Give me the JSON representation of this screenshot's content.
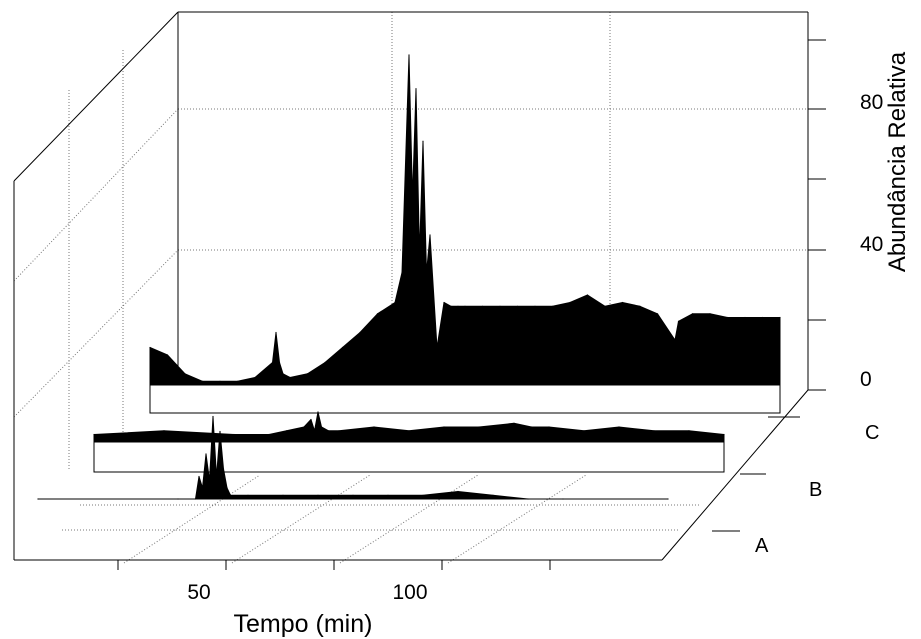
{
  "chart_data": {
    "type": "line",
    "title": "",
    "xlabel": "Tempo (min)",
    "ylabel": "Abundância Relativa",
    "x_ticks": [
      50,
      100
    ],
    "y_ticks": [
      0,
      40,
      80
    ],
    "xlim": [
      0,
      180
    ],
    "ylim": [
      0,
      100
    ],
    "grid": true,
    "series": [
      {
        "name": "C",
        "x": [
          0,
          5,
          10,
          15,
          20,
          25,
          30,
          35,
          36,
          37,
          38,
          40,
          45,
          50,
          55,
          60,
          65,
          70,
          72,
          74,
          75,
          76,
          77,
          78,
          79,
          80,
          82,
          84,
          86,
          88,
          90,
          95,
          100,
          105,
          110,
          115,
          120,
          125,
          130,
          135,
          140,
          145,
          150,
          151,
          155,
          160,
          165,
          170,
          175,
          180
        ],
        "y": [
          10,
          8,
          3,
          1,
          1,
          1,
          2,
          6,
          14,
          6,
          3,
          2,
          3,
          6,
          10,
          14,
          19,
          22,
          30,
          88,
          50,
          79,
          35,
          65,
          30,
          40,
          10,
          22,
          21,
          21,
          21,
          21,
          21,
          21,
          21,
          21,
          22,
          24,
          21,
          22,
          21,
          19,
          12,
          17,
          19,
          19,
          18,
          18,
          18,
          18
        ]
      },
      {
        "name": "B",
        "x": [
          0,
          20,
          40,
          50,
          55,
          60,
          62,
          63,
          64,
          65,
          67,
          70,
          80,
          90,
          100,
          110,
          120,
          125,
          130,
          140,
          150,
          160,
          170,
          180
        ],
        "y": [
          2,
          3,
          2,
          2,
          3,
          4,
          6,
          3,
          8,
          4,
          3,
          3,
          4,
          3,
          4,
          4,
          5,
          4,
          4,
          3,
          4,
          3,
          3,
          2
        ]
      },
      {
        "name": "A",
        "x": [
          0,
          40,
          45,
          46,
          47,
          48,
          49,
          50,
          51,
          52,
          53,
          54,
          55,
          60,
          70,
          80,
          90,
          100,
          110,
          120,
          130,
          140,
          150,
          180
        ],
        "y": [
          0,
          0,
          0,
          6,
          3,
          12,
          5,
          22,
          6,
          18,
          8,
          3,
          1,
          1,
          1,
          1,
          1,
          1,
          1,
          2,
          1,
          0,
          0,
          0
        ]
      }
    ]
  }
}
